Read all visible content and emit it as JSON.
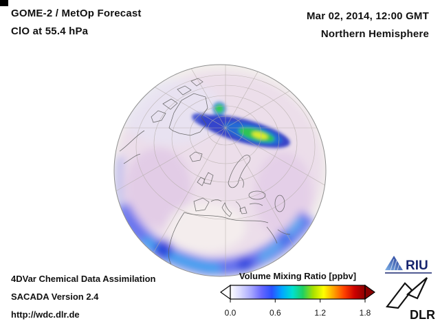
{
  "header": {
    "product": "GOME-2 / MetOp Forecast",
    "species_level": "ClO at 55.4 hPa",
    "datetime": "Mar 02, 2014, 12:00 GMT",
    "region": "Northern Hemisphere"
  },
  "colorbar": {
    "title": "Volume Mixing Ratio [ppbv]",
    "tick_labels": [
      "0.0",
      "0.6",
      "1.2",
      "1.8"
    ],
    "range_min": 0.0,
    "range_max": 1.8,
    "colors": [
      "#ffffff",
      "#d8d8ff",
      "#a8a8ff",
      "#6868ff",
      "#2a50ff",
      "#00a8ff",
      "#00e0d0",
      "#20d060",
      "#a8e000",
      "#ffff00",
      "#ffa000",
      "#ff4000",
      "#cc0000",
      "#8b0000"
    ]
  },
  "credits": {
    "line1": "4DVar Chemical Data Assimilation",
    "line2": "SACADA Version 2.4",
    "line3": "http://wdc.dlr.de"
  },
  "logos": {
    "riu": "RIU",
    "dlr": "DLR"
  }
}
